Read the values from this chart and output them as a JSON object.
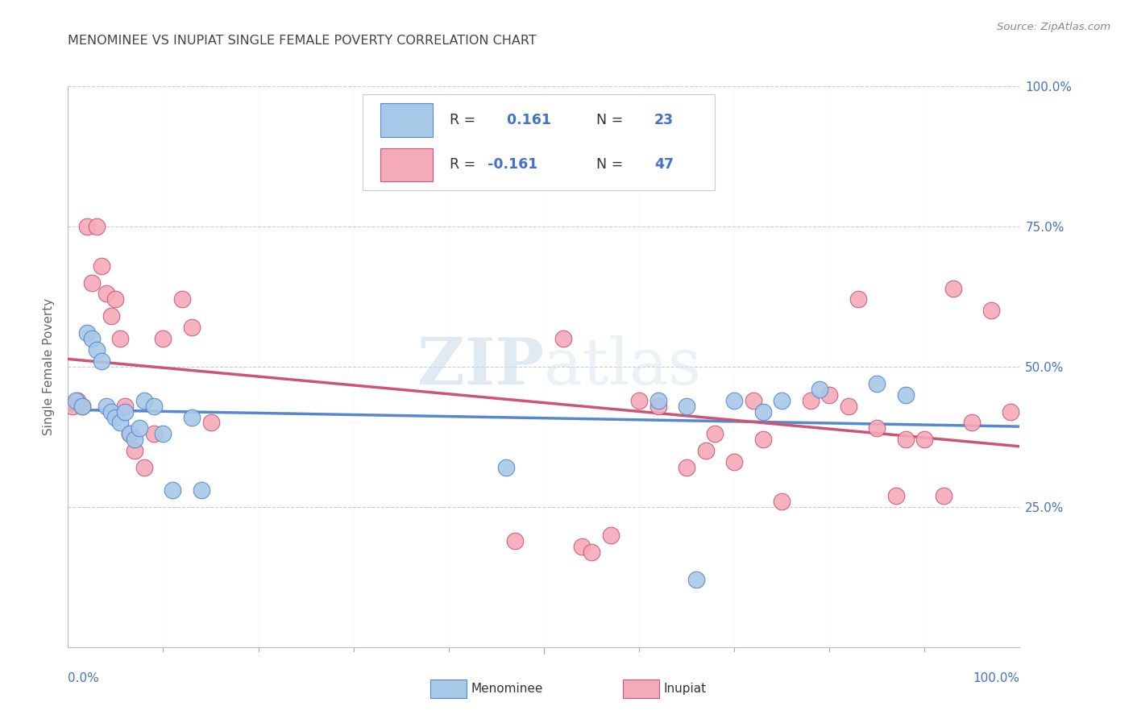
{
  "title": "MENOMINEE VS INUPIAT SINGLE FEMALE POVERTY CORRELATION CHART",
  "source": "Source: ZipAtlas.com",
  "ylabel": "Single Female Poverty",
  "menominee_color": "#a8c8e8",
  "inupiat_color": "#f5aab8",
  "trend_menominee_color": "#5588cc",
  "trend_inupiat_color": "#cc5577",
  "watermark_zip": "#b8d0e8",
  "watermark_atlas": "#c8d8e8",
  "title_color": "#444444",
  "label_color": "#4472c4",
  "tick_label_color": "#4472c4",
  "grid_color": "#cccccc",
  "menominee_x": [
    0.008,
    0.015,
    0.02,
    0.025,
    0.03,
    0.035,
    0.04,
    0.045,
    0.05,
    0.055,
    0.06,
    0.065,
    0.07,
    0.075,
    0.08,
    0.09,
    0.1,
    0.11,
    0.13,
    0.14,
    0.46,
    0.62,
    0.65,
    0.66,
    0.7,
    0.73,
    0.75,
    0.79,
    0.85,
    0.88
  ],
  "menominee_y": [
    0.44,
    0.43,
    0.56,
    0.55,
    0.53,
    0.51,
    0.43,
    0.42,
    0.41,
    0.4,
    0.42,
    0.38,
    0.37,
    0.39,
    0.44,
    0.43,
    0.38,
    0.28,
    0.41,
    0.28,
    0.32,
    0.44,
    0.43,
    0.12,
    0.44,
    0.42,
    0.44,
    0.46,
    0.47,
    0.45
  ],
  "inupiat_x": [
    0.005,
    0.01,
    0.015,
    0.02,
    0.025,
    0.03,
    0.035,
    0.04,
    0.045,
    0.05,
    0.055,
    0.06,
    0.065,
    0.07,
    0.08,
    0.09,
    0.1,
    0.12,
    0.13,
    0.15,
    0.47,
    0.52,
    0.54,
    0.55,
    0.57,
    0.6,
    0.62,
    0.65,
    0.67,
    0.68,
    0.7,
    0.72,
    0.73,
    0.75,
    0.78,
    0.8,
    0.82,
    0.83,
    0.85,
    0.87,
    0.88,
    0.9,
    0.92,
    0.93,
    0.95,
    0.97,
    0.99
  ],
  "inupiat_y": [
    0.43,
    0.44,
    0.43,
    0.75,
    0.65,
    0.75,
    0.68,
    0.63,
    0.59,
    0.62,
    0.55,
    0.43,
    0.38,
    0.35,
    0.32,
    0.38,
    0.55,
    0.62,
    0.57,
    0.4,
    0.19,
    0.55,
    0.18,
    0.17,
    0.2,
    0.44,
    0.43,
    0.32,
    0.35,
    0.38,
    0.33,
    0.44,
    0.37,
    0.26,
    0.44,
    0.45,
    0.43,
    0.62,
    0.39,
    0.27,
    0.37,
    0.37,
    0.27,
    0.64,
    0.4,
    0.6,
    0.42
  ],
  "xlim": [
    0.0,
    1.0
  ],
  "ylim": [
    0.0,
    1.0
  ],
  "ytick_positions": [
    0.0,
    0.25,
    0.5,
    0.75,
    1.0
  ],
  "ytick_labels": [
    "",
    "25.0%",
    "50.0%",
    "75.0%",
    "100.0%"
  ],
  "xtick_minor_positions": [
    0.1,
    0.2,
    0.3,
    0.4,
    0.5,
    0.6,
    0.7,
    0.8,
    0.9
  ]
}
